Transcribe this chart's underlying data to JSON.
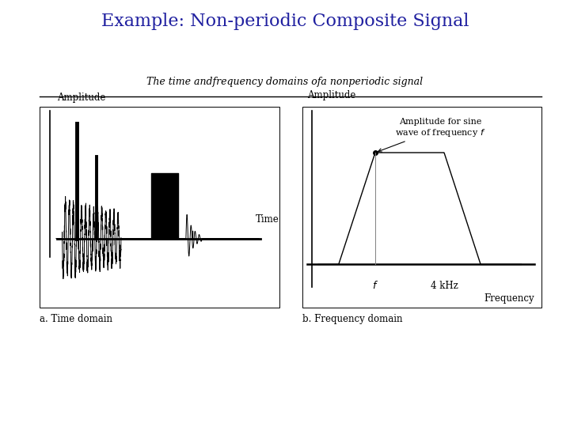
{
  "title": "Example: Non-periodic Composite Signal",
  "title_color": "#2020a0",
  "title_fontsize": 16,
  "subtitle": "The time andfrequency domains ofa nonperiodic signal",
  "subtitle_fontsize": 9,
  "bg_color": "#ffffff",
  "panel_a_label": "a. Time domain",
  "panel_b_label": "b. Frequency domain",
  "panel_a_ylabel": "Amplitude",
  "panel_b_ylabel": "Amplitude",
  "panel_a_xlabel": "Time",
  "panel_b_xlabel": "Frequency",
  "freq_label_f": "f",
  "freq_label_4khz": "4 kHz",
  "freq_annotation": "Amplitude for sine\nwave of frequency $f$"
}
